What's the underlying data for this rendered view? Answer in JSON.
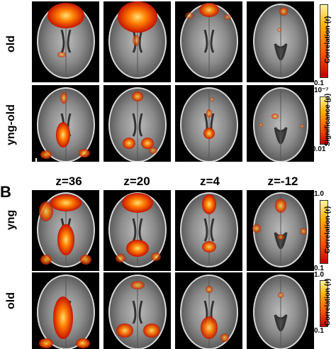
{
  "panel_b_letter": "B",
  "z_labels": [
    "z=36",
    "z=20",
    "z=4",
    "z=-12"
  ],
  "left_marker": "L",
  "rows": [
    {
      "label": "old",
      "colorbar": {
        "title": "Correlation (r)",
        "top": "",
        "bottom": "0.1"
      }
    },
    {
      "label": "yng-old",
      "colorbar": {
        "title": "Significance (p)",
        "top": "10⁻⁷",
        "bottom": "0.01"
      }
    },
    {
      "label": "yng",
      "colorbar": {
        "title": "Correlation (r)",
        "top": "1.0",
        "bottom": "0.1"
      }
    },
    {
      "label": "old",
      "colorbar": {
        "title": "Correlation (r)",
        "top": "1.0",
        "bottom": "0.1"
      }
    }
  ]
}
